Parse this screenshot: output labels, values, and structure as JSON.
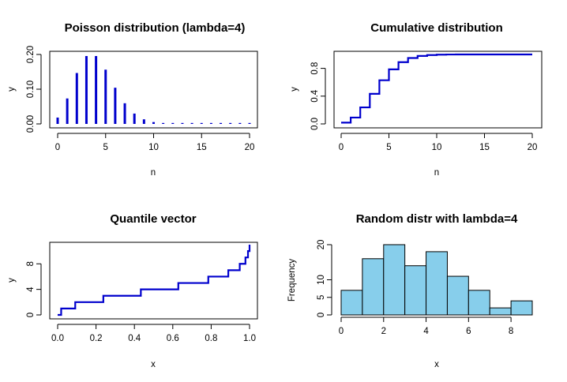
{
  "chart_data": [
    {
      "type": "bar",
      "title": "Poisson distribution (lambda=4)",
      "xlabel": "n",
      "ylabel": "y",
      "x": [
        0,
        1,
        2,
        3,
        4,
        5,
        6,
        7,
        8,
        9,
        10,
        11,
        12,
        13,
        14,
        15,
        16,
        17,
        18,
        19,
        20
      ],
      "values": [
        0.0183,
        0.0733,
        0.1465,
        0.1954,
        0.1954,
        0.1563,
        0.1042,
        0.0595,
        0.0298,
        0.0132,
        0.0053,
        0.0019,
        0.0006,
        0.0002,
        5e-05,
        1e-05,
        0,
        0,
        0,
        0,
        0
      ],
      "xlim": [
        0,
        20
      ],
      "ylim": [
        0,
        0.2
      ],
      "xticks": [
        "0",
        "5",
        "10",
        "15",
        "20"
      ],
      "yticks": [
        "0.00",
        "0.10",
        "0.20"
      ],
      "color": "#0000CD"
    },
    {
      "type": "line",
      "step": true,
      "title": "Cumulative distribution",
      "xlabel": "n",
      "ylabel": "y",
      "x": [
        0,
        1,
        2,
        3,
        4,
        5,
        6,
        7,
        8,
        9,
        10,
        11,
        12,
        13,
        14,
        15,
        16,
        17,
        18,
        19,
        20
      ],
      "values": [
        0.0183,
        0.0916,
        0.2381,
        0.4335,
        0.6288,
        0.7851,
        0.8893,
        0.9489,
        0.9786,
        0.9919,
        0.9972,
        0.9991,
        0.9997,
        0.9999,
        1,
        1,
        1,
        1,
        1,
        1,
        1
      ],
      "xlim": [
        0,
        20
      ],
      "ylim": [
        0,
        1
      ],
      "xticks": [
        "0",
        "5",
        "10",
        "15",
        "20"
      ],
      "yticks": [
        "0.0",
        "0.4",
        "0.8"
      ],
      "color": "#0000CD"
    },
    {
      "type": "line",
      "step": true,
      "title": "Quantile vector",
      "xlabel": "x",
      "ylabel": "y",
      "x": [
        0.0,
        0.0183,
        0.0916,
        0.2381,
        0.4335,
        0.6288,
        0.7851,
        0.8893,
        0.9489,
        0.9786,
        0.9919,
        1.0
      ],
      "values": [
        0,
        1,
        2,
        3,
        4,
        5,
        6,
        7,
        8,
        9,
        10,
        11
      ],
      "xlim": [
        0,
        1
      ],
      "ylim": [
        0,
        11
      ],
      "xticks": [
        "0.0",
        "0.2",
        "0.4",
        "0.6",
        "0.8",
        "1.0"
      ],
      "yticks": [
        "0",
        "4",
        "8"
      ],
      "color": "#0000CD"
    },
    {
      "type": "bar",
      "histogram": true,
      "title": "Random distr with lambda=4",
      "xlabel": "x",
      "ylabel": "Frequency",
      "bin_edges": [
        0,
        1,
        2,
        3,
        4,
        5,
        6,
        7,
        8,
        9
      ],
      "values": [
        7,
        16,
        20,
        14,
        18,
        11,
        7,
        2,
        4
      ],
      "xlim": [
        0,
        9
      ],
      "ylim": [
        0,
        20
      ],
      "xticks": [
        "0",
        "2",
        "4",
        "6",
        "8"
      ],
      "yticks": [
        "0",
        "5",
        "10",
        "20"
      ],
      "color": "#87CEEB"
    }
  ]
}
